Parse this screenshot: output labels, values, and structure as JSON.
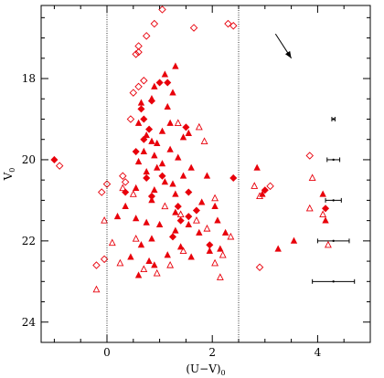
{
  "chart_data": {
    "type": "scatter",
    "xlabel": "(U−V)",
    "xlabel_sub": "0",
    "ylabel": "V",
    "ylabel_sub": "0",
    "xlim": [
      -1.25,
      5.0
    ],
    "ylim": [
      24.5,
      16.2
    ],
    "y_inverted": true,
    "x_ticks": [
      0,
      2,
      4
    ],
    "x_tick_labels": [
      "0",
      "2",
      "4"
    ],
    "x_minor_step": 0.5,
    "y_ticks": [
      18,
      20,
      22,
      24
    ],
    "y_tick_labels": [
      "18",
      "20",
      "22",
      "24"
    ],
    "y_minor_step": 0.5,
    "grid": false,
    "legend": "none",
    "vertical_dashed_lines_x": [
      0,
      2.5
    ],
    "reddening_arrow": {
      "from": [
        3.2,
        16.9
      ],
      "to": [
        3.5,
        17.5
      ]
    },
    "marker_color": "#e8000b",
    "series": [
      {
        "marker": "filled-triangle",
        "points": [
          [
            0.65,
            18.6
          ],
          [
            0.9,
            18.2
          ],
          [
            0.85,
            18.5
          ],
          [
            1.1,
            17.9
          ],
          [
            1.15,
            18.7
          ],
          [
            1.25,
            18.35
          ],
          [
            1.3,
            17.7
          ],
          [
            1.2,
            19.1
          ],
          [
            1.05,
            19.3
          ],
          [
            0.6,
            19.1
          ],
          [
            0.75,
            19.4
          ],
          [
            0.85,
            19.55
          ],
          [
            0.7,
            19.8
          ],
          [
            0.9,
            19.9
          ],
          [
            0.95,
            20.2
          ],
          [
            0.75,
            20.3
          ],
          [
            0.6,
            20.05
          ],
          [
            1.05,
            20.1
          ],
          [
            1.2,
            19.75
          ],
          [
            1.45,
            19.45
          ],
          [
            1.35,
            19.95
          ],
          [
            1.55,
            19.35
          ],
          [
            1.1,
            20.55
          ],
          [
            1.45,
            20.4
          ],
          [
            1.25,
            20.6
          ],
          [
            0.9,
            20.75
          ],
          [
            1.6,
            20.2
          ],
          [
            1.9,
            20.4
          ],
          [
            0.55,
            20.7
          ],
          [
            0.85,
            21.0
          ],
          [
            0.35,
            21.15
          ],
          [
            0.2,
            21.4
          ],
          [
            0.55,
            21.45
          ],
          [
            0.75,
            21.55
          ],
          [
            1.0,
            21.6
          ],
          [
            0.85,
            21.95
          ],
          [
            0.65,
            22.1
          ],
          [
            0.45,
            22.4
          ],
          [
            1.3,
            21.3
          ],
          [
            1.55,
            21.6
          ],
          [
            1.3,
            21.75
          ],
          [
            1.75,
            21.8
          ],
          [
            2.1,
            21.5
          ],
          [
            2.25,
            21.8
          ],
          [
            2.15,
            22.2
          ],
          [
            1.95,
            22.25
          ],
          [
            1.4,
            22.15
          ],
          [
            1.15,
            22.35
          ],
          [
            0.9,
            22.6
          ],
          [
            0.6,
            22.85
          ],
          [
            0.8,
            22.5
          ],
          [
            1.6,
            22.4
          ],
          [
            1.8,
            21.05
          ],
          [
            2.05,
            21.15
          ],
          [
            2.85,
            20.2
          ],
          [
            2.95,
            20.85
          ],
          [
            3.25,
            22.2
          ],
          [
            3.55,
            22.0
          ],
          [
            4.1,
            20.85
          ],
          [
            4.15,
            21.5
          ],
          [
            0.95,
            19.6
          ],
          [
            1.3,
            20.85
          ]
        ]
      },
      {
        "marker": "filled-diamond",
        "points": [
          [
            -1.0,
            20.0
          ],
          [
            0.65,
            18.75
          ],
          [
            0.85,
            18.55
          ],
          [
            1.0,
            18.1
          ],
          [
            1.15,
            18.1
          ],
          [
            0.7,
            19.0
          ],
          [
            0.8,
            19.25
          ],
          [
            0.7,
            19.5
          ],
          [
            1.5,
            19.2
          ],
          [
            0.55,
            19.8
          ],
          [
            1.05,
            20.4
          ],
          [
            0.75,
            20.45
          ],
          [
            0.35,
            20.8
          ],
          [
            1.55,
            20.8
          ],
          [
            1.35,
            21.15
          ],
          [
            1.7,
            21.25
          ],
          [
            1.4,
            21.5
          ],
          [
            1.95,
            22.1
          ],
          [
            0.85,
            20.9
          ],
          [
            3.0,
            20.75
          ],
          [
            2.4,
            20.45
          ],
          [
            4.15,
            21.2
          ],
          [
            1.25,
            21.9
          ],
          [
            1.55,
            21.4
          ]
        ]
      },
      {
        "marker": "open-triangle",
        "points": [
          [
            -0.05,
            21.5
          ],
          [
            -0.2,
            23.2
          ],
          [
            0.1,
            22.05
          ],
          [
            0.3,
            20.7
          ],
          [
            0.25,
            22.55
          ],
          [
            0.55,
            21.95
          ],
          [
            0.7,
            22.7
          ],
          [
            0.95,
            22.8
          ],
          [
            1.2,
            22.6
          ],
          [
            1.45,
            22.25
          ],
          [
            1.35,
            19.1
          ],
          [
            1.75,
            19.2
          ],
          [
            1.85,
            19.55
          ],
          [
            1.1,
            21.15
          ],
          [
            1.4,
            21.35
          ],
          [
            1.7,
            21.5
          ],
          [
            1.9,
            21.7
          ],
          [
            2.05,
            22.55
          ],
          [
            2.2,
            22.35
          ],
          [
            2.35,
            21.9
          ],
          [
            2.05,
            20.95
          ],
          [
            2.8,
            20.65
          ],
          [
            2.9,
            20.9
          ],
          [
            3.9,
            20.45
          ],
          [
            4.1,
            21.35
          ],
          [
            4.2,
            22.1
          ],
          [
            3.85,
            21.2
          ],
          [
            0.5,
            20.85
          ],
          [
            2.15,
            22.9
          ]
        ]
      },
      {
        "marker": "open-diamond",
        "points": [
          [
            -0.9,
            20.15
          ],
          [
            -0.2,
            22.6
          ],
          [
            -0.05,
            22.45
          ],
          [
            -0.1,
            20.8
          ],
          [
            0.0,
            20.6
          ],
          [
            0.3,
            20.4
          ],
          [
            0.35,
            20.55
          ],
          [
            0.45,
            19.0
          ],
          [
            0.5,
            18.35
          ],
          [
            0.6,
            18.2
          ],
          [
            0.7,
            18.05
          ],
          [
            0.6,
            17.35
          ],
          [
            0.55,
            17.4
          ],
          [
            0.6,
            17.2
          ],
          [
            0.75,
            16.95
          ],
          [
            0.9,
            16.65
          ],
          [
            1.05,
            16.3
          ],
          [
            1.65,
            16.75
          ],
          [
            2.3,
            16.65
          ],
          [
            2.4,
            16.7
          ],
          [
            3.85,
            19.9
          ],
          [
            2.9,
            22.65
          ],
          [
            3.1,
            20.65
          ]
        ]
      }
    ],
    "error_bars": [
      {
        "x": 4.3,
        "y": 19.0,
        "xerr": 0.03
      },
      {
        "x": 4.3,
        "y": 20.0,
        "xerr": 0.12
      },
      {
        "x": 4.3,
        "y": 21.0,
        "xerr": 0.15
      },
      {
        "x": 4.3,
        "y": 22.0,
        "xerr": 0.3
      },
      {
        "x": 4.3,
        "y": 23.0,
        "xerr": 0.4
      }
    ]
  }
}
